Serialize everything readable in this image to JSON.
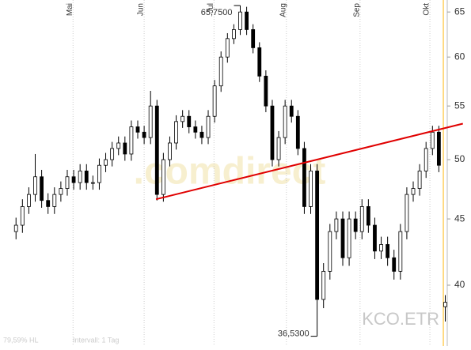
{
  "chart_data": {
    "type": "candlestick",
    "open": [
      44,
      44.5,
      46,
      47,
      48.5,
      46.5,
      46,
      47,
      47.5,
      48.5,
      48,
      49,
      48,
      48,
      49.5,
      50,
      51,
      51.5,
      50.5,
      53,
      52.5,
      52,
      55,
      47,
      50,
      51.5,
      53.5,
      54,
      53,
      52.5,
      52,
      54,
      57,
      60,
      62,
      63,
      65,
      63,
      61,
      58,
      55,
      50,
      52,
      55,
      54,
      51,
      46,
      49,
      39,
      41,
      44,
      45,
      42,
      45,
      44,
      46,
      44.5,
      42.5,
      43,
      42,
      41,
      44,
      47,
      47.5,
      49,
      51,
      52.5,
      38.5
    ],
    "high": [
      45.1,
      46.6,
      47.6,
      50.5,
      49.1,
      47.1,
      47.6,
      48.1,
      49.1,
      49.1,
      49.6,
      49.6,
      48.6,
      50.1,
      50.6,
      51.6,
      52.1,
      52.1,
      53.6,
      53.6,
      53.1,
      56.5,
      55.6,
      50.6,
      52.1,
      54.1,
      54.6,
      54.6,
      53.6,
      53.1,
      54.6,
      57.6,
      60.6,
      62.6,
      63.6,
      65.75,
      65.6,
      63.6,
      61.6,
      58.6,
      55.6,
      52.6,
      55.6,
      55.6,
      54.6,
      51.6,
      49.6,
      49.6,
      41.6,
      44.6,
      45.6,
      45.6,
      45.6,
      45.6,
      46.6,
      46.6,
      45.1,
      43.6,
      43.6,
      42.6,
      44.6,
      47.6,
      48.1,
      49.6,
      51.6,
      53.1,
      53.1,
      39.3
    ],
    "low": [
      43.4,
      43.9,
      45.4,
      46.4,
      45.9,
      45.4,
      45.4,
      46.4,
      46.9,
      47.4,
      47.4,
      47.4,
      47.4,
      47.4,
      48.9,
      49.4,
      50.4,
      49.9,
      49.9,
      51.9,
      51.4,
      51.4,
      46.5,
      46.4,
      49.4,
      50.9,
      52.9,
      52.4,
      51.9,
      51.4,
      51.4,
      53.4,
      56.4,
      59.4,
      61.4,
      62.4,
      62.4,
      60.4,
      57.4,
      54.4,
      49.4,
      49.4,
      51.4,
      53.4,
      50.4,
      45.4,
      45.4,
      36.53,
      38.4,
      40.4,
      43.4,
      41.4,
      41.4,
      43.4,
      43.4,
      43.9,
      41.9,
      41.9,
      41.4,
      40.4,
      40.4,
      43.4,
      46.4,
      46.9,
      48.4,
      50.4,
      48.9,
      37.5
    ],
    "close": [
      44.5,
      46,
      47,
      48.5,
      46.5,
      46,
      47,
      47.5,
      48.5,
      48,
      49,
      48,
      48,
      49.5,
      50,
      51,
      51.5,
      50.5,
      53,
      52.5,
      52,
      55,
      47,
      50,
      51.5,
      53.5,
      54,
      53,
      52.5,
      52,
      54,
      57,
      60,
      62,
      63,
      65,
      63,
      61,
      58,
      55,
      50,
      52,
      55,
      54,
      51,
      46,
      49,
      39,
      41,
      44,
      45,
      42,
      45,
      44,
      46,
      44.5,
      42.5,
      43,
      42,
      41,
      44,
      47,
      47.5,
      49,
      51,
      52.5,
      49.5,
      38.8
    ],
    "high_label": "65,7500",
    "low_label": "36,5300",
    "xlim": [
      -2.5,
      70.4
    ],
    "xticks": [
      {
        "value": 8.9,
        "label": "Mai"
      },
      {
        "value": 20,
        "label": "Jun"
      },
      {
        "value": 30.9,
        "label": "Jul"
      },
      {
        "value": 42.2,
        "label": "Aug"
      },
      {
        "value": 53.7,
        "label": "Sep"
      },
      {
        "value": 64.6,
        "label": "Okt"
      }
    ],
    "ylim": [
      35.9,
      66.4
    ],
    "yticks": [
      40,
      45,
      50,
      55,
      60,
      65
    ],
    "log_scale": true,
    "trendline": {
      "x": [
        21.85,
        69.75
      ],
      "y": [
        46.6,
        53.3
      ],
      "color": "#e00000"
    },
    "marker_x": 66.7,
    "marker_color": "#ffd060",
    "symbol": "KCO.ETR",
    "watermark": ".comdirect",
    "footer_left": "79,59% HL",
    "footer_interval": "Intervall: 1 Tag"
  }
}
